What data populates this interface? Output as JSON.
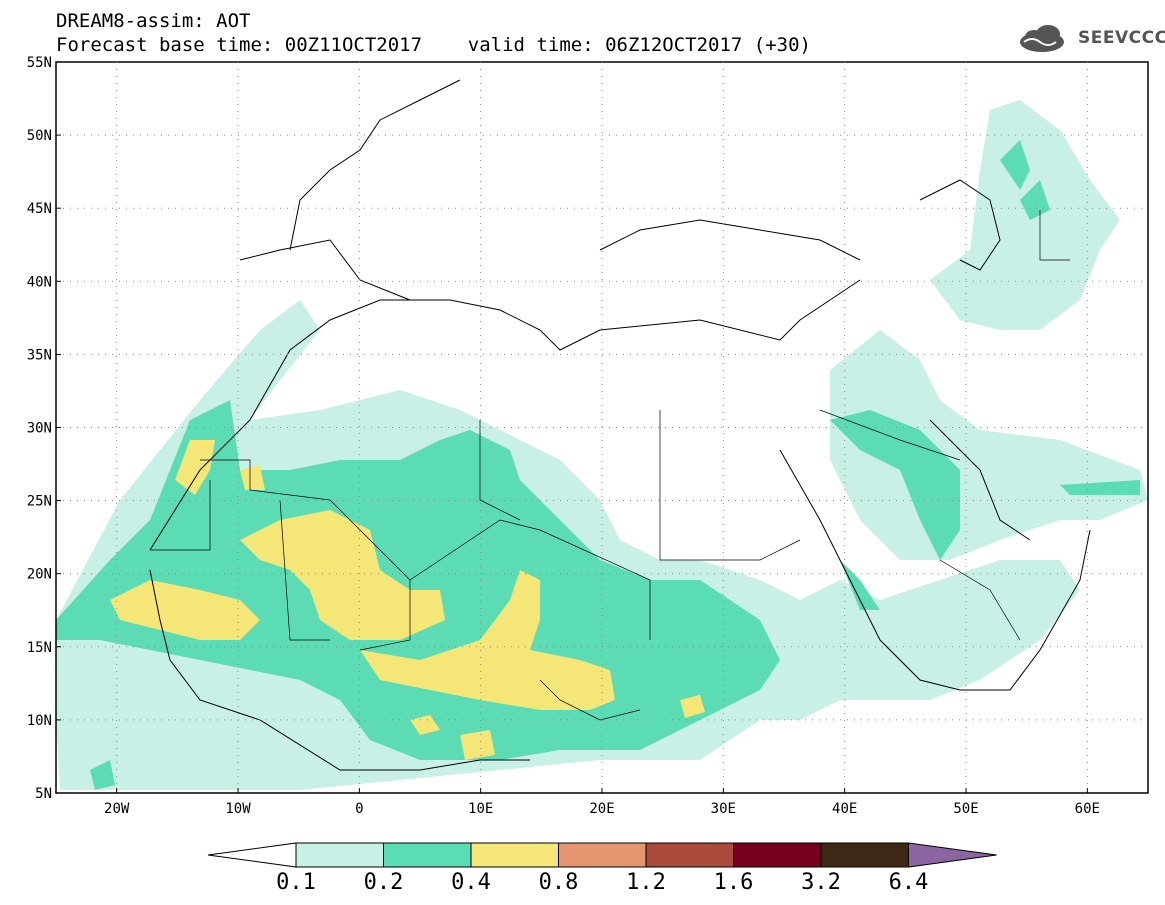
{
  "header": {
    "line1": "DREAM8-assim: AOT",
    "line2": "Forecast base time: 00Z11OCT2017    valid time: 06Z12OCT2017 (+30)",
    "logo_text": "SEEVCCC"
  },
  "map": {
    "lon_range": [
      -25,
      65
    ],
    "lat_range": [
      5,
      55
    ],
    "lat_labels": [
      "55N",
      "50N",
      "45N",
      "40N",
      "35N",
      "30N",
      "25N",
      "20N",
      "15N",
      "10N",
      "5N"
    ],
    "lon_labels": [
      "20W",
      "10W",
      "0",
      "10E",
      "20E",
      "30E",
      "40E",
      "50E",
      "60E"
    ],
    "grid": "dotted"
  },
  "colorbar": {
    "colors": [
      "#ffffff",
      "#c8f0e6",
      "#5cdcb4",
      "#f5e678",
      "#e6966e",
      "#aa4b3c",
      "#78001e",
      "#3c2814",
      "#8c64a0"
    ],
    "labels": [
      "0.1",
      "0.2",
      "0.4",
      "0.8",
      "1.2",
      "1.6",
      "3.2",
      "6.4"
    ]
  }
}
